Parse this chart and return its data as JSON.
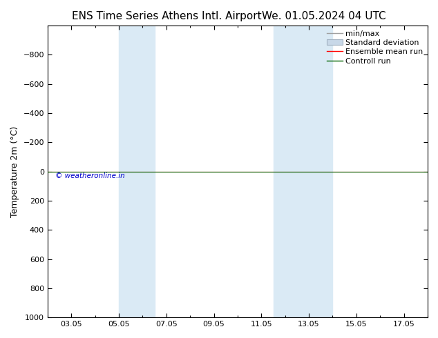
{
  "title_left": "ENS Time Series Athens Intl. Airport",
  "title_right": "We. 01.05.2024 04 UTC",
  "ylabel": "Temperature 2m (°C)",
  "watermark": "© weatheronline.in",
  "ylim_bottom": 1000,
  "ylim_top": -1000,
  "yticks": [
    -800,
    -600,
    -400,
    -200,
    0,
    200,
    400,
    600,
    800,
    1000
  ],
  "xtick_labels": [
    "03.05",
    "05.05",
    "07.05",
    "09.05",
    "11.05",
    "13.05",
    "15.05",
    "17.05"
  ],
  "xtick_positions": [
    2,
    4,
    6,
    8,
    10,
    12,
    14,
    16
  ],
  "xlim": [
    1,
    17
  ],
  "shaded_regions": [
    {
      "x_start": 4.0,
      "x_end": 5.5
    },
    {
      "x_start": 10.5,
      "x_end": 13.0
    }
  ],
  "line_y": 0,
  "ensemble_mean_color": "#ff0000",
  "control_run_color": "#006400",
  "min_max_color": "#a0a0a0",
  "std_dev_color": "#c8d8e8",
  "std_dev_edge_color": "#a0b0c0",
  "background_color": "#ffffff",
  "shaded_color": "#daeaf5",
  "watermark_color": "#0000cc",
  "title_fontsize": 11,
  "label_fontsize": 9,
  "tick_fontsize": 8,
  "legend_fontsize": 8
}
